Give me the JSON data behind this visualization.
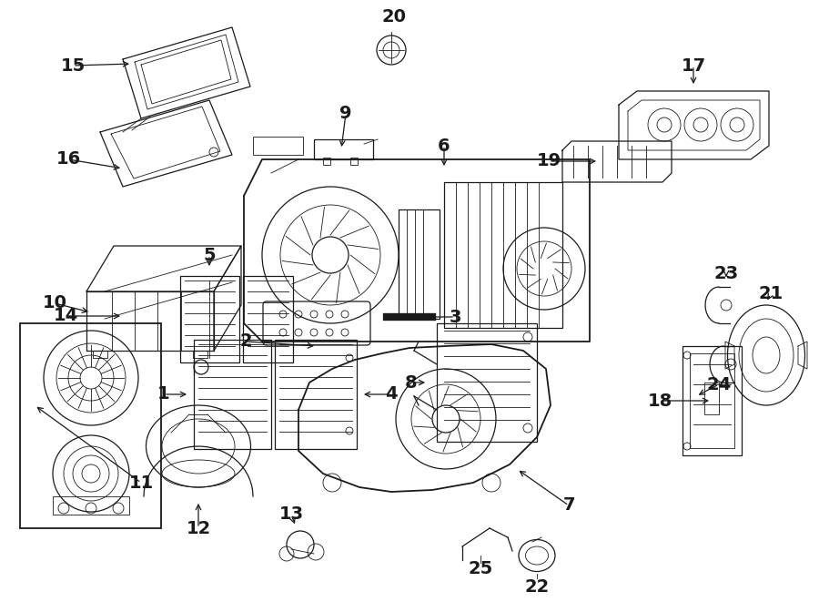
{
  "background_color": "#ffffff",
  "line_color": "#1a1a1a",
  "figsize": [
    9.0,
    6.61
  ],
  "dpi": 100,
  "font_size": 14,
  "font_size_sm": 11,
  "font_weight": "bold",
  "lw_thin": 0.6,
  "lw_med": 0.9,
  "lw_thick": 1.3
}
